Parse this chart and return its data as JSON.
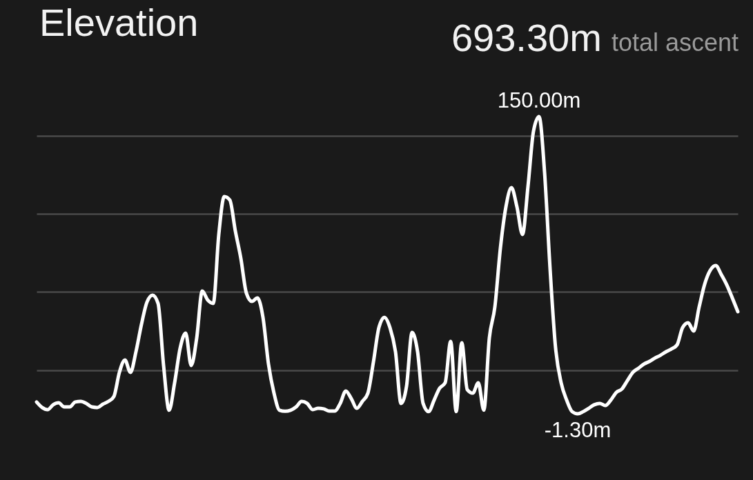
{
  "chart_data": {
    "type": "line",
    "title": "Elevation",
    "annotations": [
      "693.30m",
      "total ascent"
    ],
    "categories": [
      null,
      null,
      null,
      null,
      null,
      null,
      null,
      null,
      null,
      null,
      null,
      null,
      null,
      null,
      null,
      null,
      null,
      null,
      null,
      null,
      null,
      null,
      null,
      null,
      null,
      null,
      null,
      null,
      null,
      null,
      null,
      null,
      null,
      null,
      null,
      null,
      null,
      null,
      null,
      null,
      null,
      null,
      null,
      null,
      null,
      null,
      null,
      null,
      null,
      null,
      null,
      null,
      null,
      null,
      null,
      null,
      null,
      null,
      null,
      null,
      null,
      null,
      null,
      null,
      null,
      null,
      null,
      null,
      null,
      null,
      null,
      null,
      null,
      null,
      null,
      null,
      null,
      null,
      null,
      null,
      null,
      null,
      null,
      null,
      null,
      null,
      null,
      null,
      null,
      null,
      null,
      null,
      null,
      null,
      null,
      null,
      null,
      null,
      null,
      null,
      null,
      null,
      null,
      null,
      null,
      null,
      null,
      null,
      null,
      null,
      null,
      null,
      null,
      null,
      null,
      null,
      null,
      null,
      null,
      null,
      null,
      null,
      null,
      null,
      null,
      null,
      null,
      null
    ],
    "series": [
      {
        "color": "#ffffff",
        "values": [
          4.7,
          1.9,
          0.8,
          3.3,
          4.3,
          2.2,
          2.2,
          4.7,
          5.0,
          4.0,
          2.2,
          1.9,
          3.6,
          5.0,
          7.5,
          19.8,
          26.1,
          19.8,
          30.3,
          44.3,
          55.6,
          59.1,
          54.9,
          23.3,
          0.5,
          14.5,
          32.1,
          39.8,
          23.3,
          37.3,
          61.2,
          56.6,
          54.9,
          90.0,
          109.3,
          107.5,
          91.7,
          77.7,
          60.1,
          55.9,
          57.7,
          47.8,
          24.0,
          9.2,
          0.5,
          0.0,
          0.5,
          2.2,
          5.0,
          4.0,
          0.8,
          1.5,
          1.2,
          0.1,
          0.1,
          4.0,
          10.3,
          6.4,
          1.5,
          5.0,
          9.2,
          25.0,
          42.6,
          47.8,
          42.6,
          30.3,
          4.0,
          12.7,
          40.1,
          30.3,
          4.0,
          -0.2,
          5.7,
          11.7,
          14.5,
          35.6,
          -0.2,
          34.9,
          11.0,
          9.2,
          14.5,
          0.5,
          37.3,
          53.1,
          83.0,
          104.0,
          113.8,
          104.0,
          90.0,
          114.5,
          142.6,
          150.0,
          121.6,
          72.4,
          32.1,
          14.5,
          5.7,
          -0.2,
          -1.3,
          -0.2,
          1.5,
          3.3,
          4.0,
          2.9,
          5.7,
          9.6,
          11.3,
          15.6,
          19.8,
          21.9,
          24.0,
          25.4,
          27.1,
          28.5,
          30.3,
          31.7,
          33.8,
          42.6,
          45.0,
          40.8,
          53.1,
          64.7,
          71.7,
          74.2,
          69.6,
          64.3,
          57.7,
          50.7
        ],
        "value_labels": [
          null,
          null,
          null,
          null,
          null,
          null,
          null,
          null,
          null,
          null,
          null,
          null,
          null,
          null,
          null,
          null,
          null,
          null,
          null,
          null,
          null,
          null,
          null,
          null,
          null,
          null,
          null,
          null,
          null,
          null,
          null,
          null,
          null,
          null,
          null,
          null,
          null,
          null,
          null,
          null,
          null,
          null,
          null,
          null,
          null,
          null,
          null,
          null,
          null,
          null,
          null,
          null,
          null,
          null,
          null,
          null,
          null,
          null,
          null,
          null,
          null,
          null,
          null,
          null,
          null,
          null,
          null,
          null,
          null,
          null,
          null,
          null,
          null,
          null,
          null,
          null,
          null,
          null,
          null,
          null,
          null,
          null,
          null,
          null,
          null,
          null,
          null,
          null,
          null,
          null,
          null,
          "150.00m",
          null,
          null,
          null,
          null,
          null,
          null,
          "-1.30m",
          null,
          null,
          null,
          null,
          null,
          null,
          null,
          null,
          null,
          null,
          null,
          null,
          null,
          null,
          null,
          null,
          null,
          null,
          null,
          null,
          null,
          null,
          null,
          null,
          null,
          null,
          null,
          null,
          null
        ]
      }
    ],
    "yticks": [
      {
        "value": 20.8,
        "label": null
      },
      {
        "value": 60.8,
        "label": null
      },
      {
        "value": 100.5,
        "label": null
      },
      {
        "value": 140.2,
        "label": null
      }
    ],
    "grid": "y",
    "line_style": "solid"
  }
}
